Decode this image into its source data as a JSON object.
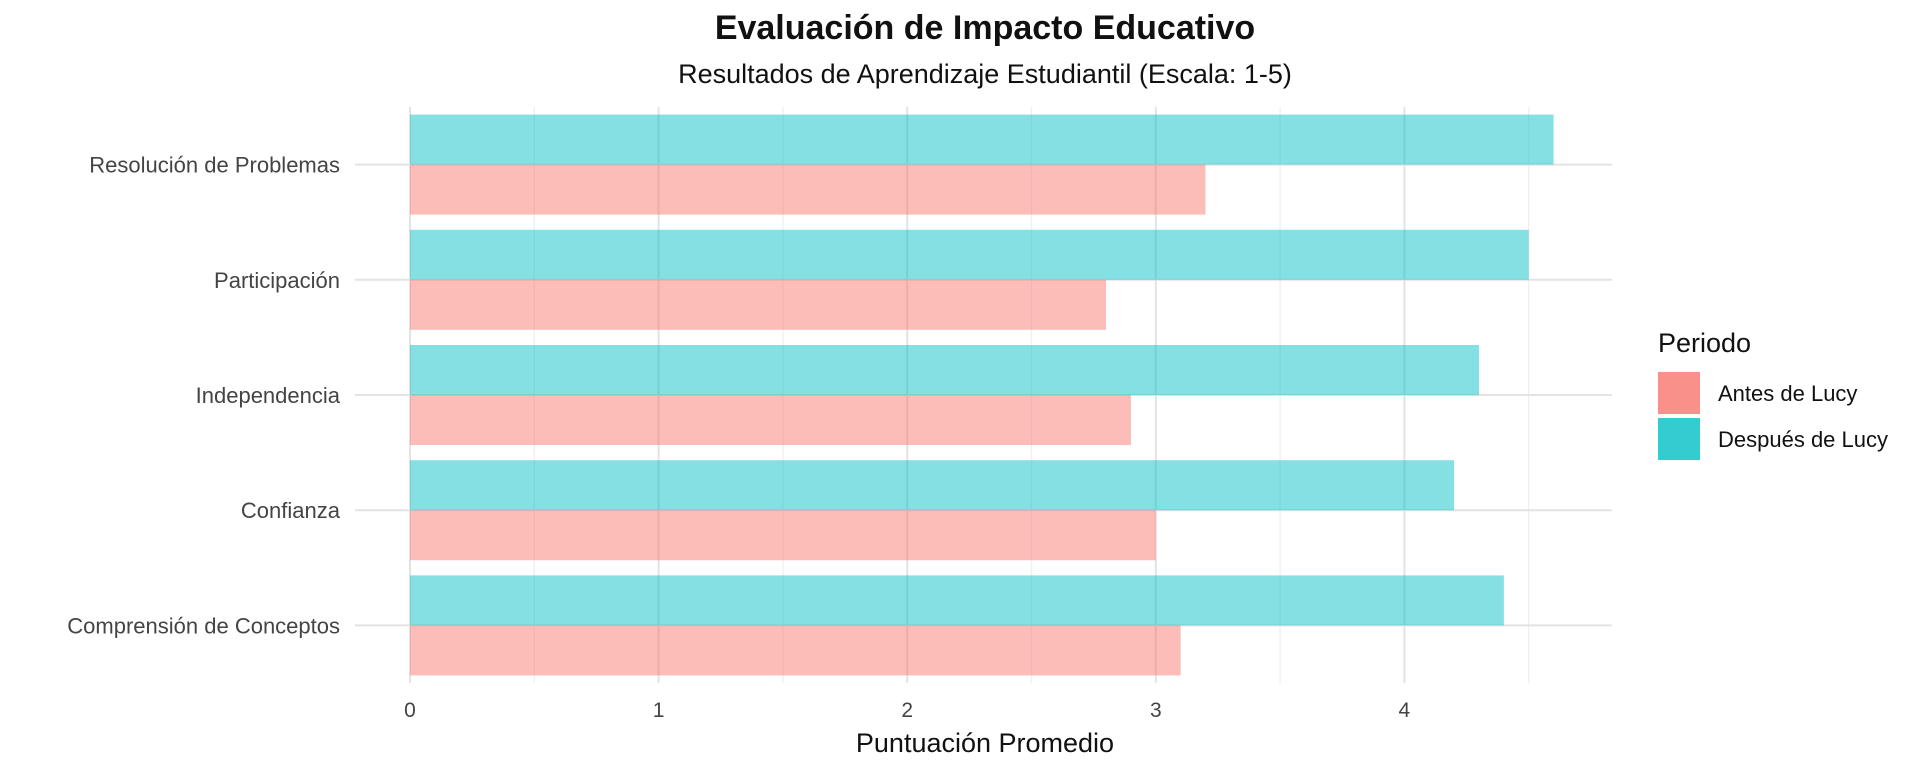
{
  "chart_data": {
    "type": "bar",
    "orientation": "horizontal",
    "title": "Evaluación de Impacto Educativo",
    "subtitle": "Resultados de Aprendizaje Estudiantil (Escala: 1-5)",
    "xlabel": "Puntuación Promedio",
    "ylabel": "",
    "xlim": [
      0,
      4.83
    ],
    "x_ticks": [
      "0",
      "1",
      "2",
      "3",
      "4"
    ],
    "grid": true,
    "legend": {
      "title": "Periodo",
      "placement": "right"
    },
    "categories": [
      "Resolución de Problemas",
      "Participación",
      "Independencia",
      "Confianza",
      "Comprensión de Conceptos"
    ],
    "series": [
      {
        "name": "Antes de Lucy",
        "color": "#F8766D",
        "values": [
          3.2,
          2.8,
          2.9,
          3.0,
          3.1
        ]
      },
      {
        "name": "Después de Lucy",
        "color": "#00BFC4",
        "values": [
          4.6,
          4.5,
          4.3,
          4.2,
          4.4
        ]
      }
    ]
  }
}
